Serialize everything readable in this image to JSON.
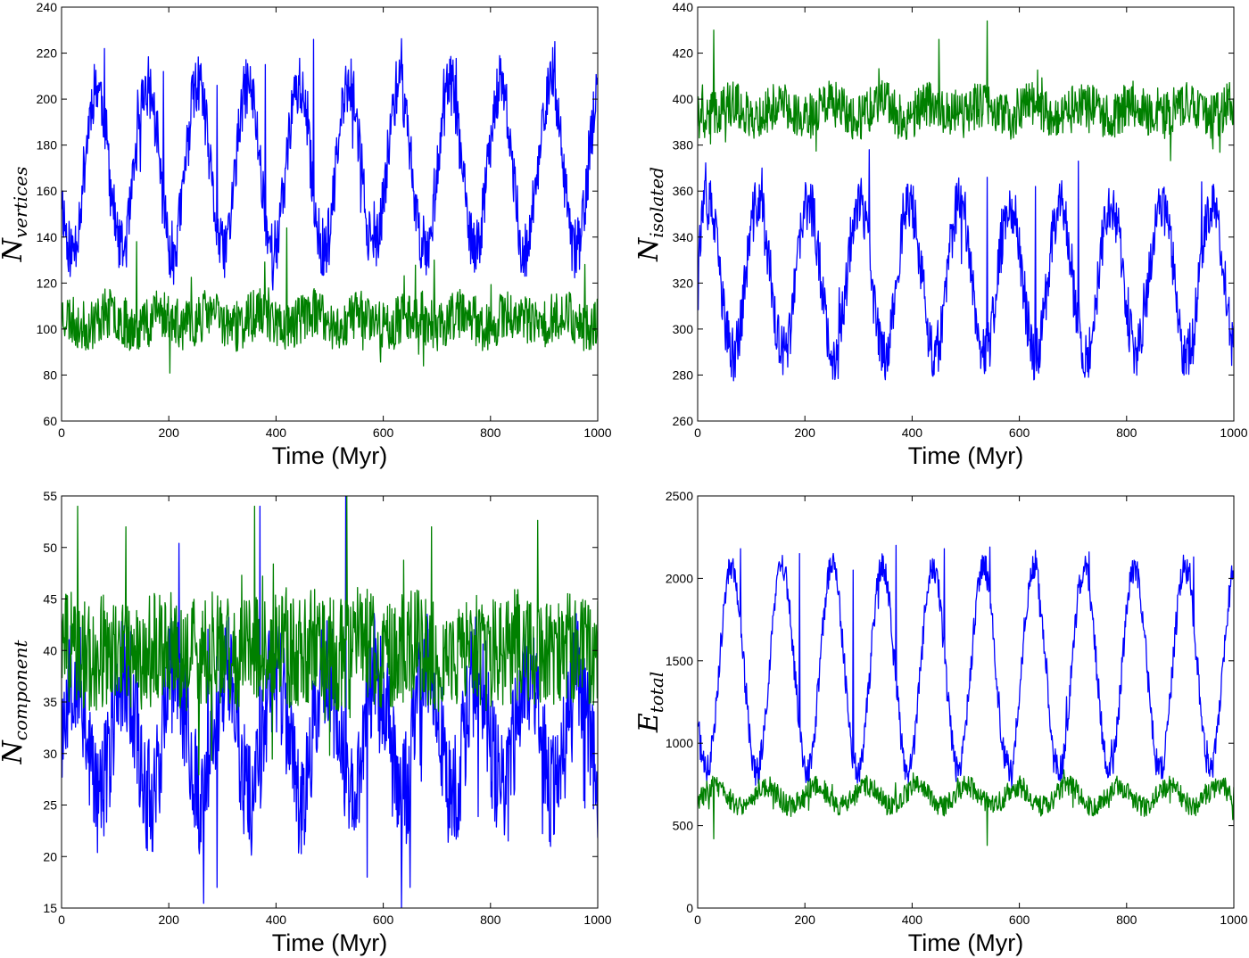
{
  "chart_data": [
    {
      "type": "line",
      "xlabel": "Time (Myr)",
      "ylabel_main": "N",
      "ylabel_sub": "vertices",
      "xlim": [
        0,
        1000
      ],
      "ylim": [
        60,
        240
      ],
      "xticks": [
        0,
        200,
        400,
        600,
        800,
        1000
      ],
      "yticks": [
        60,
        80,
        100,
        120,
        140,
        160,
        180,
        200,
        220,
        240
      ],
      "grid": false,
      "series": [
        {
          "color": "#0000ff",
          "mean": 170,
          "amp": 36,
          "phase": 0.55,
          "noise": 13,
          "seed": 11,
          "x_peaks": [
            80,
            190,
            290,
            380,
            470,
            545,
            630,
            730,
            820,
            920
          ],
          "y_peaks": [
            222,
            212,
            206,
            215,
            226,
            212,
            217,
            217,
            208,
            225
          ]
        },
        {
          "color": "#008000",
          "mean": 104,
          "amp": 3,
          "phase": 0.3,
          "noise": 11,
          "seed": 23,
          "x_peaks": [
            140,
            420,
            695
          ],
          "y_peaks": [
            138,
            144,
            130
          ]
        }
      ]
    },
    {
      "type": "line",
      "xlabel": "Time (Myr)",
      "ylabel_main": "N",
      "ylabel_sub": "isolated",
      "xlim": [
        0,
        1000
      ],
      "ylim": [
        260,
        440
      ],
      "xticks": [
        0,
        200,
        400,
        600,
        800,
        1000
      ],
      "yticks": [
        260,
        280,
        300,
        320,
        340,
        360,
        380,
        400,
        420,
        440
      ],
      "grid": false,
      "series": [
        {
          "color": "#0000ff",
          "mean": 322,
          "amp": 33,
          "phase": 0.05,
          "noise": 12,
          "seed": 37,
          "x_peaks": [
            20,
            120,
            320,
            540,
            630,
            710,
            940
          ],
          "y_peaks": [
            350,
            370,
            378,
            366,
            362,
            373,
            364
          ]
        },
        {
          "color": "#008000",
          "mean": 395,
          "amp": 3,
          "phase": 0.6,
          "noise": 10,
          "seed": 41,
          "x_peaks": [
            30,
            450,
            540
          ],
          "y_peaks": [
            430,
            426,
            434
          ]
        }
      ]
    },
    {
      "type": "line",
      "xlabel": "Time (Myr)",
      "ylabel_main": "N",
      "ylabel_sub": "component",
      "xlim": [
        0,
        1000
      ],
      "ylim": [
        15,
        55
      ],
      "xticks": [
        0,
        200,
        400,
        600,
        800,
        1000
      ],
      "yticks": [
        15,
        20,
        25,
        30,
        35,
        40,
        45,
        50,
        55
      ],
      "grid": false,
      "series": [
        {
          "color": "#0000ff",
          "mean": 32,
          "amp": 6,
          "phase": 0.0,
          "noise": 6,
          "seed": 53,
          "x_peaks": [
            290,
            370,
            530,
            570,
            650
          ],
          "y_peaks": [
            17,
            54,
            55,
            18,
            17
          ]
        },
        {
          "color": "#008000",
          "mean": 40,
          "amp": 0.5,
          "phase": 0.2,
          "noise": 5.5,
          "seed": 59,
          "x_peaks": [
            30,
            120,
            360,
            532,
            690
          ],
          "y_peaks": [
            54,
            52,
            54,
            55,
            52
          ]
        }
      ]
    },
    {
      "type": "line",
      "xlabel": "Time (Myr)",
      "ylabel_main": "E",
      "ylabel_sub": "total",
      "xlim": [
        0,
        1000
      ],
      "ylim": [
        0,
        2500
      ],
      "xticks": [
        0,
        200,
        400,
        600,
        800,
        1000
      ],
      "yticks": [
        0,
        500,
        1000,
        1500,
        2000,
        2500
      ],
      "grid": false,
      "series": [
        {
          "color": "#0000ff",
          "mean": 1450,
          "amp": 620,
          "phase": 0.58,
          "noise": 90,
          "seed": 71,
          "x_peaks": [
            80,
            190,
            290,
            370,
            460,
            545,
            630,
            730,
            820,
            925
          ],
          "y_peaks": [
            2180,
            2150,
            2050,
            2200,
            2180,
            2190,
            2170,
            2160,
            2100,
            2130
          ]
        },
        {
          "color": "#008000",
          "mean": 680,
          "amp": 60,
          "phase": 0.9,
          "noise": 65,
          "seed": 83,
          "x_peaks": [
            30,
            540
          ],
          "y_peaks": [
            420,
            380
          ]
        }
      ]
    }
  ]
}
